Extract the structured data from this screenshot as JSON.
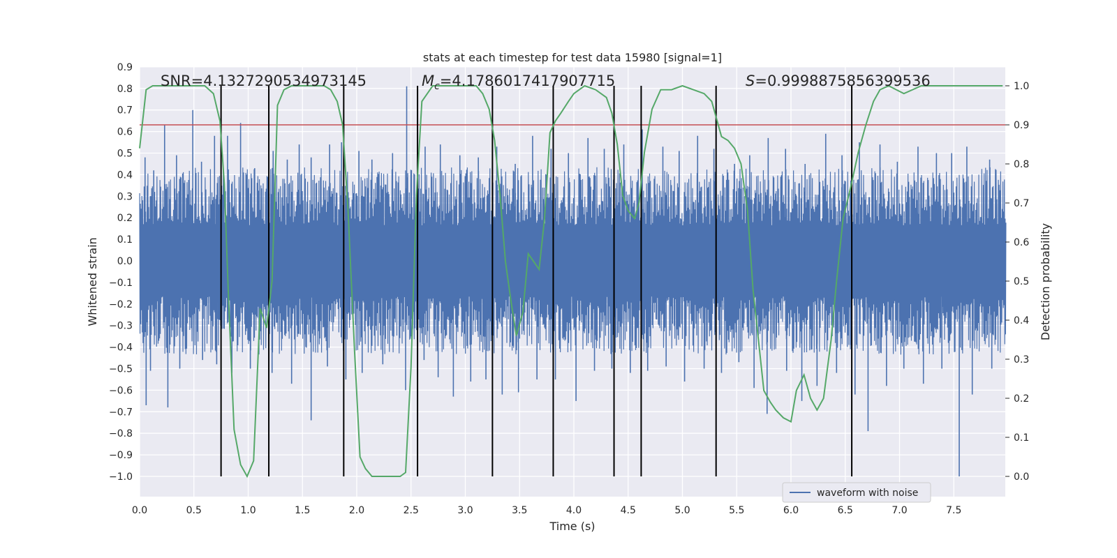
{
  "chart_data": {
    "type": "line",
    "title": "stats at each timestep for test data 15980 [signal=1]",
    "xlabel": "Time (s)",
    "ylabel": "Whitened strain",
    "y2label": "Detection probability",
    "xlim": [
      0.0,
      8.0
    ],
    "ylim": [
      -1.09,
      0.91
    ],
    "y2lim": [
      -0.05,
      1.05
    ],
    "x_ticks": [
      "0.0",
      "0.5",
      "1.0",
      "1.5",
      "2.0",
      "2.5",
      "3.0",
      "3.5",
      "4.0",
      "4.5",
      "5.0",
      "5.5",
      "6.0",
      "6.5",
      "7.0",
      "7.5"
    ],
    "y_ticks": [
      "0.9",
      "0.8",
      "0.7",
      "0.6",
      "0.5",
      "0.4",
      "0.3",
      "0.2",
      "0.1",
      "0.0",
      "−0.1",
      "−0.2",
      "−0.3",
      "−0.4",
      "−0.5",
      "−0.6",
      "−0.7",
      "−0.8",
      "−0.9",
      "−1.0"
    ],
    "y2_ticks": [
      "1.0",
      "0.9",
      "0.8",
      "0.7",
      "0.6",
      "0.5",
      "0.4",
      "0.3",
      "0.2",
      "0.1",
      "0.0"
    ],
    "grid": true,
    "legend": {
      "position": "lower-right",
      "entries": [
        "waveform with noise"
      ]
    },
    "annotations": {
      "snr": "SNR=4.1327290534973145",
      "mc_symbol": "M",
      "mc_subscript": "c",
      "mc_value": "=4.1786017417907715",
      "s_symbol": "S",
      "s_value": "=0.9998875856399536"
    },
    "threshold": {
      "value": 0.9,
      "axis": "y2",
      "color": "#c44e52"
    },
    "event_lines": [
      0.75,
      1.19,
      1.88,
      2.56,
      3.25,
      3.81,
      4.37,
      4.62,
      5.31,
      6.56
    ],
    "series": [
      {
        "name": "waveform with noise",
        "axis": "y",
        "color": "#4c72b0",
        "envelope": {
          "typical_amplitude": 0.3,
          "max_peak": 0.81,
          "min_peak": -1.0
        },
        "peaks_high": [
          [
            0.05,
            0.48
          ],
          [
            0.13,
            0.42
          ],
          [
            0.23,
            0.63
          ],
          [
            0.34,
            0.49
          ],
          [
            0.49,
            0.7
          ],
          [
            0.57,
            0.46
          ],
          [
            0.69,
            0.58
          ],
          [
            0.81,
            0.58
          ],
          [
            0.93,
            0.64
          ],
          [
            1.06,
            0.43
          ],
          [
            1.23,
            0.51
          ],
          [
            1.36,
            0.47
          ],
          [
            1.47,
            0.54
          ],
          [
            1.58,
            0.48
          ],
          [
            1.75,
            0.54
          ],
          [
            1.86,
            0.55
          ],
          [
            2.02,
            0.51
          ],
          [
            2.14,
            0.47
          ],
          [
            2.33,
            0.5
          ],
          [
            2.46,
            0.81
          ],
          [
            2.63,
            0.53
          ],
          [
            2.77,
            0.54
          ],
          [
            2.95,
            0.49
          ],
          [
            3.12,
            0.48
          ],
          [
            3.29,
            0.53
          ],
          [
            3.46,
            0.45
          ],
          [
            3.62,
            0.58
          ],
          [
            3.79,
            0.52
          ],
          [
            3.95,
            0.5
          ],
          [
            4.13,
            0.57
          ],
          [
            4.28,
            0.52
          ],
          [
            4.46,
            0.54
          ],
          [
            4.63,
            0.61
          ],
          [
            4.82,
            0.53
          ],
          [
            4.97,
            0.51
          ],
          [
            5.14,
            0.58
          ],
          [
            5.29,
            0.52
          ],
          [
            5.48,
            0.45
          ],
          [
            5.62,
            0.49
          ],
          [
            5.79,
            0.57
          ],
          [
            5.95,
            0.52
          ],
          [
            6.13,
            0.45
          ],
          [
            6.32,
            0.59
          ],
          [
            6.47,
            0.49
          ],
          [
            6.63,
            0.55
          ],
          [
            6.82,
            0.54
          ],
          [
            6.98,
            0.46
          ],
          [
            7.17,
            0.53
          ],
          [
            7.34,
            0.5
          ],
          [
            7.48,
            0.5
          ],
          [
            7.62,
            0.53
          ],
          [
            7.83,
            0.47
          ]
        ],
        "peaks_low": [
          [
            0.06,
            -0.67
          ],
          [
            0.1,
            -0.51
          ],
          [
            0.26,
            -0.68
          ],
          [
            0.37,
            -0.5
          ],
          [
            0.58,
            -0.46
          ],
          [
            0.71,
            -0.48
          ],
          [
            0.85,
            -0.52
          ],
          [
            1.02,
            -0.5
          ],
          [
            1.22,
            -0.52
          ],
          [
            1.4,
            -0.57
          ],
          [
            1.58,
            -0.74
          ],
          [
            1.73,
            -0.49
          ],
          [
            1.9,
            -0.55
          ],
          [
            2.05,
            -0.52
          ],
          [
            2.24,
            -0.48
          ],
          [
            2.45,
            -0.6
          ],
          [
            2.62,
            -0.46
          ],
          [
            2.75,
            -0.54
          ],
          [
            2.89,
            -0.63
          ],
          [
            3.05,
            -0.56
          ],
          [
            3.19,
            -0.55
          ],
          [
            3.34,
            -0.62
          ],
          [
            3.49,
            -0.61
          ],
          [
            3.66,
            -0.55
          ],
          [
            3.83,
            -0.55
          ],
          [
            4.02,
            -0.65
          ],
          [
            4.19,
            -0.51
          ],
          [
            4.35,
            -0.5
          ],
          [
            4.52,
            -0.52
          ],
          [
            4.68,
            -0.51
          ],
          [
            4.85,
            -0.49
          ],
          [
            5.02,
            -0.56
          ],
          [
            5.2,
            -0.5
          ],
          [
            5.36,
            -0.52
          ],
          [
            5.52,
            -0.47
          ],
          [
            5.66,
            -0.59
          ],
          [
            5.78,
            -0.71
          ],
          [
            5.96,
            -0.51
          ],
          [
            6.1,
            -0.65
          ],
          [
            6.24,
            -0.58
          ],
          [
            6.42,
            -0.52
          ],
          [
            6.59,
            -0.62
          ],
          [
            6.71,
            -0.79
          ],
          [
            6.88,
            -0.58
          ],
          [
            7.04,
            -0.5
          ],
          [
            7.22,
            -0.57
          ],
          [
            7.39,
            -0.5
          ],
          [
            7.55,
            -1.0
          ],
          [
            7.67,
            -0.62
          ],
          [
            7.85,
            -0.5
          ]
        ]
      },
      {
        "name": "",
        "axis": "y2",
        "color": "#55a868",
        "x": [
          0.0,
          0.06,
          0.12,
          0.2,
          0.3,
          0.4,
          0.5,
          0.6,
          0.68,
          0.74,
          0.78,
          0.82,
          0.87,
          0.93,
          0.99,
          1.05,
          1.11,
          1.17,
          1.22,
          1.27,
          1.33,
          1.4,
          1.5,
          1.6,
          1.7,
          1.76,
          1.82,
          1.87,
          1.92,
          1.98,
          2.03,
          2.08,
          2.14,
          2.2,
          2.3,
          2.4,
          2.45,
          2.5,
          2.55,
          2.6,
          2.65,
          2.7,
          2.8,
          2.9,
          3.0,
          3.1,
          3.16,
          3.22,
          3.27,
          3.32,
          3.37,
          3.42,
          3.47,
          3.53,
          3.58,
          3.63,
          3.68,
          3.73,
          3.78,
          3.83,
          3.88,
          3.95,
          4.0,
          4.05,
          4.1,
          4.2,
          4.3,
          4.35,
          4.4,
          4.45,
          4.5,
          4.56,
          4.6,
          4.65,
          4.72,
          4.8,
          4.9,
          5.0,
          5.1,
          5.2,
          5.27,
          5.31,
          5.36,
          5.42,
          5.48,
          5.54,
          5.6,
          5.65,
          5.7,
          5.75,
          5.81,
          5.86,
          5.93,
          6.0,
          6.05,
          6.12,
          6.18,
          6.24,
          6.3,
          6.37,
          6.42,
          6.48,
          6.55,
          6.62,
          6.69,
          6.76,
          6.82,
          6.9,
          6.97,
          7.04,
          7.12,
          7.2,
          7.3,
          7.45,
          7.6,
          7.75,
          7.95
        ],
        "y": [
          0.84,
          0.99,
          1.0,
          1.0,
          1.0,
          1.0,
          1.0,
          1.0,
          0.98,
          0.91,
          0.75,
          0.45,
          0.12,
          0.03,
          0.0,
          0.04,
          0.43,
          0.38,
          0.5,
          0.95,
          0.99,
          1.0,
          1.0,
          1.0,
          1.0,
          0.99,
          0.96,
          0.9,
          0.68,
          0.32,
          0.05,
          0.02,
          0.0,
          0.0,
          0.0,
          0.0,
          0.01,
          0.28,
          0.72,
          0.96,
          0.98,
          1.0,
          1.0,
          1.0,
          1.0,
          1.0,
          0.98,
          0.94,
          0.86,
          0.72,
          0.55,
          0.45,
          0.36,
          0.42,
          0.57,
          0.55,
          0.53,
          0.66,
          0.88,
          0.91,
          0.93,
          0.96,
          0.98,
          0.99,
          1.0,
          0.99,
          0.97,
          0.93,
          0.85,
          0.72,
          0.68,
          0.66,
          0.7,
          0.83,
          0.94,
          0.99,
          0.99,
          1.0,
          0.99,
          0.98,
          0.96,
          0.92,
          0.87,
          0.86,
          0.84,
          0.8,
          0.68,
          0.48,
          0.35,
          0.22,
          0.19,
          0.17,
          0.15,
          0.14,
          0.22,
          0.26,
          0.2,
          0.17,
          0.2,
          0.35,
          0.5,
          0.66,
          0.74,
          0.83,
          0.9,
          0.96,
          0.99,
          1.0,
          0.99,
          0.98,
          0.99,
          1.0,
          1.0,
          1.0,
          1.0,
          1.0,
          1.0
        ]
      }
    ]
  }
}
